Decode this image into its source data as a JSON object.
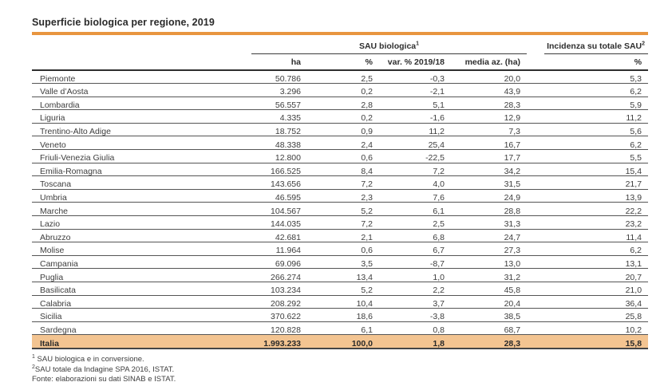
{
  "accent_color": "#E8953F",
  "total_row_bg": "#F3C491",
  "title": "Superficie biologica per regione, 2019",
  "table": {
    "group_headers": {
      "sau": {
        "label": "SAU biologica",
        "sup": "1"
      },
      "incidenza": {
        "label": "Incidenza su totale SAU",
        "sup": "2"
      }
    },
    "columns": [
      "",
      "ha",
      "%",
      "var. % 2019/18",
      "media az. (ha)",
      "%"
    ],
    "rows": [
      {
        "region": "Piemonte",
        "ha": "50.786",
        "pct": "2,5",
        "var": "-0,3",
        "media": "20,0",
        "incidenza": "5,3"
      },
      {
        "region": "Valle d’Aosta",
        "ha": "3.296",
        "pct": "0,2",
        "var": "-2,1",
        "media": "43,9",
        "incidenza": "6,2"
      },
      {
        "region": "Lombardia",
        "ha": "56.557",
        "pct": "2,8",
        "var": "5,1",
        "media": "28,3",
        "incidenza": "5,9"
      },
      {
        "region": "Liguria",
        "ha": "4.335",
        "pct": "0,2",
        "var": "-1,6",
        "media": "12,9",
        "incidenza": "11,2"
      },
      {
        "region": "Trentino-Alto Adige",
        "ha": "18.752",
        "pct": "0,9",
        "var": "11,2",
        "media": "7,3",
        "incidenza": "5,6"
      },
      {
        "region": "Veneto",
        "ha": "48.338",
        "pct": "2,4",
        "var": "25,4",
        "media": "16,7",
        "incidenza": "6,2"
      },
      {
        "region": "Friuli-Venezia Giulia",
        "ha": "12.800",
        "pct": "0,6",
        "var": "-22,5",
        "media": "17,7",
        "incidenza": "5,5"
      },
      {
        "region": "Emilia-Romagna",
        "ha": "166.525",
        "pct": "8,4",
        "var": "7,2",
        "media": "34,2",
        "incidenza": "15,4"
      },
      {
        "region": "Toscana",
        "ha": "143.656",
        "pct": "7,2",
        "var": "4,0",
        "media": "31,5",
        "incidenza": "21,7"
      },
      {
        "region": "Umbria",
        "ha": "46.595",
        "pct": "2,3",
        "var": "7,6",
        "media": "24,9",
        "incidenza": "13,9"
      },
      {
        "region": "Marche",
        "ha": "104.567",
        "pct": "5,2",
        "var": "6,1",
        "media": "28,8",
        "incidenza": "22,2"
      },
      {
        "region": "Lazio",
        "ha": "144.035",
        "pct": "7,2",
        "var": "2,5",
        "media": "31,3",
        "incidenza": "23,2"
      },
      {
        "region": "Abruzzo",
        "ha": "42.681",
        "pct": "2,1",
        "var": "6,8",
        "media": "24,7",
        "incidenza": "11,4"
      },
      {
        "region": "Molise",
        "ha": "11.964",
        "pct": "0,6",
        "var": "6,7",
        "media": "27,3",
        "incidenza": "6,2"
      },
      {
        "region": "Campania",
        "ha": "69.096",
        "pct": "3,5",
        "var": "-8,7",
        "media": "13,0",
        "incidenza": "13,1"
      },
      {
        "region": "Puglia",
        "ha": "266.274",
        "pct": "13,4",
        "var": "1,0",
        "media": "31,2",
        "incidenza": "20,7"
      },
      {
        "region": "Basilicata",
        "ha": "103.234",
        "pct": "5,2",
        "var": "2,2",
        "media": "45,8",
        "incidenza": "21,0"
      },
      {
        "region": "Calabria",
        "ha": "208.292",
        "pct": "10,4",
        "var": "3,7",
        "media": "20,4",
        "incidenza": "36,4"
      },
      {
        "region": "Sicilia",
        "ha": "370.622",
        "pct": "18,6",
        "var": "-3,8",
        "media": "38,5",
        "incidenza": "25,8"
      },
      {
        "region": "Sardegna",
        "ha": "120.828",
        "pct": "6,1",
        "var": "0,8",
        "media": "68,7",
        "incidenza": "10,2"
      }
    ],
    "total_row": {
      "region": "Italia",
      "ha": "1.993.233",
      "pct": "100,0",
      "var": "1,8",
      "media": "28,3",
      "incidenza": "15,8"
    }
  },
  "footnotes": [
    {
      "sup": "1",
      "text": " SAU biologica e in conversione."
    },
    {
      "sup": "2",
      "text": "SAU totale da Indagine SPA 2016, ISTAT."
    },
    {
      "sup": "",
      "text": "Fonte: elaborazioni su dati SINAB e ISTAT."
    }
  ]
}
